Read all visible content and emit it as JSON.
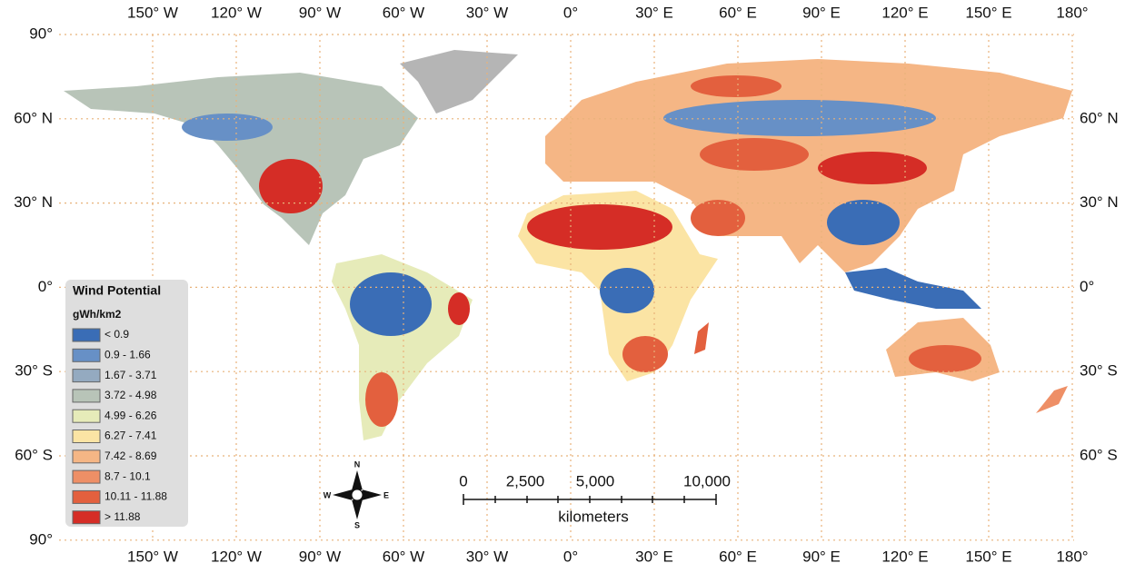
{
  "map": {
    "lon_labels": [
      "150° W",
      "120° W",
      "90° W",
      "60° W",
      "30° W",
      "0°",
      "30° E",
      "60° E",
      "90° E",
      "120° E",
      "150° E",
      "180°"
    ],
    "lat_labels_left": [
      "90°",
      "60° N",
      "30° N",
      "0°",
      "30° S",
      "60° S",
      "90°"
    ],
    "lat_labels_right": [
      "60° N",
      "30° N",
      "0°",
      "30° S",
      "60° S"
    ],
    "legend": {
      "title": "Wind Potential",
      "unit": "gWh/km2",
      "entries": [
        {
          "label": "< 0.9",
          "color": "#3a6db6"
        },
        {
          "label": "0.9 - 1.66",
          "color": "#6790c6"
        },
        {
          "label": "1.67 - 3.71",
          "color": "#94aac0"
        },
        {
          "label": "3.72 - 4.98",
          "color": "#b8c4b8"
        },
        {
          "label": "4.99 - 6.26",
          "color": "#e6ebb9"
        },
        {
          "label": "6.27 - 7.41",
          "color": "#fbe4a4"
        },
        {
          "label": "7.42 - 8.69",
          "color": "#f5b685"
        },
        {
          "label": "8.7 - 10.1",
          "color": "#ee8f66"
        },
        {
          "label": "10.11 - 11.88",
          "color": "#e3603e"
        },
        {
          "label": "> 11.88",
          "color": "#d52d26"
        }
      ]
    },
    "compass": {
      "n": "N",
      "s": "S",
      "e": "E",
      "w": "W"
    },
    "scale_bar": {
      "labels": [
        "0",
        "2,500",
        "5,000",
        "10,000"
      ],
      "unit": "kilometers"
    }
  }
}
